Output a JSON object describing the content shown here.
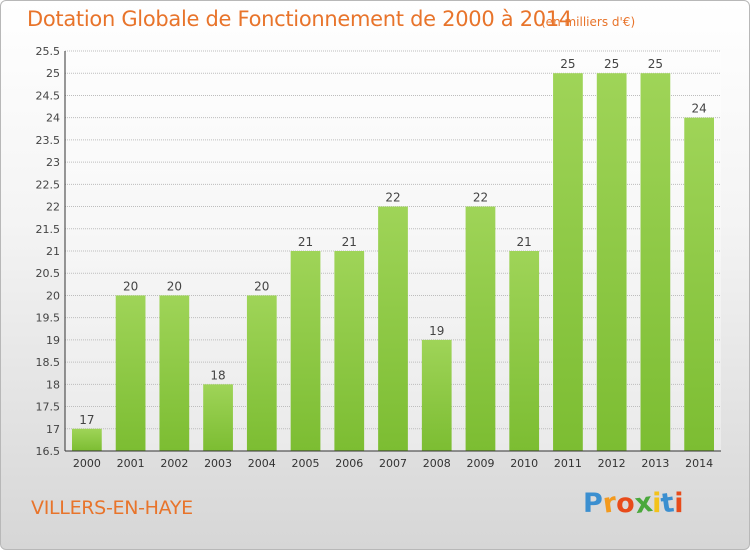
{
  "chart_data": {
    "type": "bar",
    "title": "Dotation Globale de Fonctionnement de 2000 à 2014",
    "unit": "(en milliers d'€)",
    "categories": [
      "2000",
      "2001",
      "2002",
      "2003",
      "2004",
      "2005",
      "2006",
      "2007",
      "2008",
      "2009",
      "2010",
      "2011",
      "2012",
      "2013",
      "2014"
    ],
    "values": [
      17,
      20,
      20,
      18,
      20,
      21,
      21,
      22,
      19,
      22,
      21,
      25,
      25,
      25,
      24
    ],
    "ylim": [
      16.5,
      25.5
    ],
    "yticks": [
      "16.5",
      "17",
      "17.5",
      "18",
      "18.5",
      "19",
      "19.5",
      "20",
      "20.5",
      "21",
      "21.5",
      "22",
      "22.5",
      "23",
      "23.5",
      "24",
      "24.5",
      "25",
      "25.5"
    ],
    "grid": true,
    "bar_color": "#7cbd32"
  },
  "commune": "VILLERS-EN-HAYE",
  "logo": {
    "letters": [
      "P",
      "r",
      "o",
      "x",
      "i",
      "t",
      "i"
    ],
    "colors": [
      "#3b8fd0",
      "#f39a1e",
      "#e84b1a",
      "#4aa83c",
      "#f3c21b",
      "#3b8fd0",
      "#e84b1a"
    ]
  }
}
